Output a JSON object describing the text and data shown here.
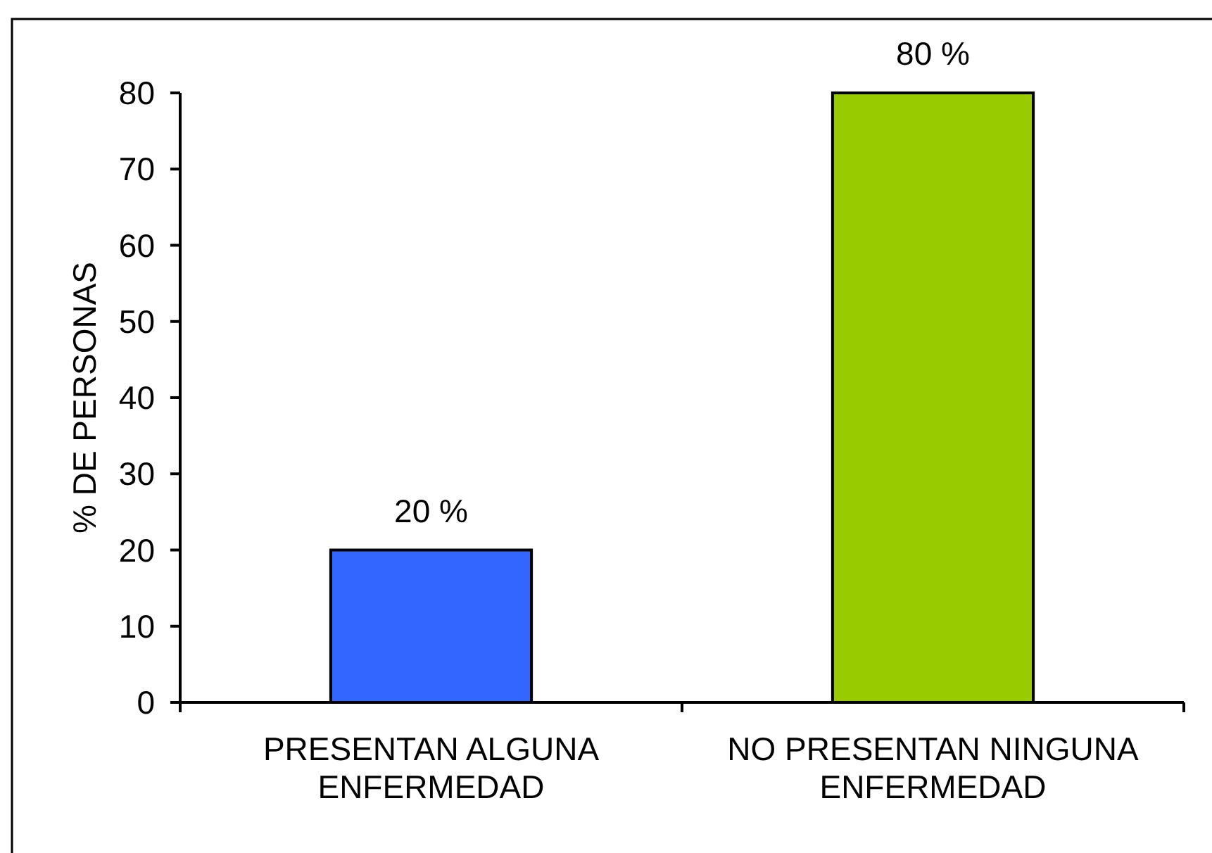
{
  "chart_data": {
    "type": "bar",
    "ylabel": "% DE PERSONAS",
    "categories": [
      "PRESENTAN ALGUNA ENFERMEDAD",
      "NO PRESENTAN NINGUNA ENFERMEDAD"
    ],
    "values": [
      20,
      80
    ],
    "colors": [
      "#3366ff",
      "#99cc00"
    ],
    "value_labels": [
      "20 %",
      "80 %"
    ],
    "ylim": [
      0,
      80
    ],
    "yticks": [
      0,
      10,
      20,
      30,
      40,
      50,
      60,
      70,
      80
    ]
  }
}
